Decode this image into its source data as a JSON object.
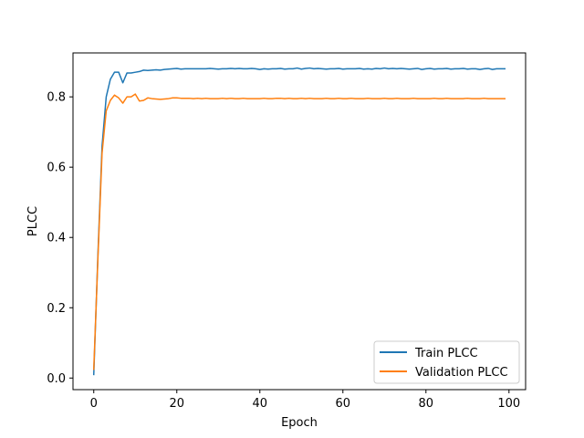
{
  "chart_data": {
    "type": "line",
    "title": "",
    "xlabel": "Epoch",
    "ylabel": "PLCC",
    "xlim": [
      -5,
      104
    ],
    "ylim": [
      -0.033,
      0.925
    ],
    "xticks": [
      0,
      20,
      40,
      60,
      80,
      100
    ],
    "yticks": [
      0.0,
      0.2,
      0.4,
      0.6,
      0.8
    ],
    "xtick_labels": [
      "0",
      "20",
      "40",
      "60",
      "80",
      "100"
    ],
    "ytick_labels": [
      "0.0",
      "0.2",
      "0.4",
      "0.6",
      "0.8"
    ],
    "grid": false,
    "legend_position": "lower-right",
    "series": [
      {
        "name": "Train PLCC",
        "color": "#1f77b4",
        "x": [
          0,
          1,
          2,
          3,
          4,
          5,
          6,
          7,
          8,
          9,
          10,
          11,
          12,
          13,
          14,
          15,
          16,
          17,
          18,
          19,
          20,
          21,
          22,
          23,
          24,
          25,
          26,
          27,
          28,
          29,
          30,
          31,
          32,
          33,
          34,
          35,
          36,
          37,
          38,
          39,
          40,
          41,
          42,
          43,
          44,
          45,
          46,
          47,
          48,
          49,
          50,
          51,
          52,
          53,
          54,
          55,
          56,
          57,
          58,
          59,
          60,
          61,
          62,
          63,
          64,
          65,
          66,
          67,
          68,
          69,
          70,
          71,
          72,
          73,
          74,
          75,
          76,
          77,
          78,
          79,
          80,
          81,
          82,
          83,
          84,
          85,
          86,
          87,
          88,
          89,
          90,
          91,
          92,
          93,
          94,
          95,
          96,
          97,
          98,
          99
        ],
        "values": [
          0.01,
          0.35,
          0.66,
          0.8,
          0.85,
          0.87,
          0.87,
          0.84,
          0.868,
          0.868,
          0.87,
          0.872,
          0.876,
          0.875,
          0.876,
          0.877,
          0.876,
          0.878,
          0.879,
          0.88,
          0.881,
          0.879,
          0.88,
          0.88,
          0.88,
          0.88,
          0.88,
          0.88,
          0.881,
          0.88,
          0.879,
          0.88,
          0.88,
          0.881,
          0.88,
          0.881,
          0.88,
          0.88,
          0.881,
          0.88,
          0.878,
          0.88,
          0.879,
          0.88,
          0.88,
          0.881,
          0.879,
          0.88,
          0.88,
          0.882,
          0.879,
          0.881,
          0.882,
          0.88,
          0.881,
          0.88,
          0.879,
          0.88,
          0.88,
          0.881,
          0.879,
          0.88,
          0.88,
          0.88,
          0.881,
          0.879,
          0.88,
          0.879,
          0.881,
          0.88,
          0.882,
          0.88,
          0.881,
          0.88,
          0.881,
          0.88,
          0.879,
          0.88,
          0.881,
          0.878,
          0.88,
          0.881,
          0.879,
          0.88,
          0.88,
          0.881,
          0.879,
          0.88,
          0.88,
          0.881,
          0.879,
          0.88,
          0.88,
          0.878,
          0.88,
          0.881,
          0.878,
          0.88,
          0.88,
          0.88
        ]
      },
      {
        "name": "Validation PLCC",
        "color": "#ff7f0e",
        "x": [
          0,
          1,
          2,
          3,
          4,
          5,
          6,
          7,
          8,
          9,
          10,
          11,
          12,
          13,
          14,
          15,
          16,
          17,
          18,
          19,
          20,
          21,
          22,
          23,
          24,
          25,
          26,
          27,
          28,
          29,
          30,
          31,
          32,
          33,
          34,
          35,
          36,
          37,
          38,
          39,
          40,
          41,
          42,
          43,
          44,
          45,
          46,
          47,
          48,
          49,
          50,
          51,
          52,
          53,
          54,
          55,
          56,
          57,
          58,
          59,
          60,
          61,
          62,
          63,
          64,
          65,
          66,
          67,
          68,
          69,
          70,
          71,
          72,
          73,
          74,
          75,
          76,
          77,
          78,
          79,
          80,
          81,
          82,
          83,
          84,
          85,
          86,
          87,
          88,
          89,
          90,
          91,
          92,
          93,
          94,
          95,
          96,
          97,
          98,
          99
        ],
        "values": [
          0.025,
          0.34,
          0.64,
          0.76,
          0.79,
          0.805,
          0.797,
          0.782,
          0.8,
          0.8,
          0.808,
          0.788,
          0.79,
          0.797,
          0.795,
          0.794,
          0.793,
          0.794,
          0.795,
          0.797,
          0.797,
          0.796,
          0.796,
          0.796,
          0.795,
          0.796,
          0.795,
          0.796,
          0.795,
          0.795,
          0.795,
          0.796,
          0.795,
          0.796,
          0.795,
          0.795,
          0.796,
          0.795,
          0.795,
          0.795,
          0.795,
          0.796,
          0.795,
          0.795,
          0.796,
          0.796,
          0.795,
          0.796,
          0.795,
          0.795,
          0.796,
          0.795,
          0.796,
          0.795,
          0.795,
          0.795,
          0.796,
          0.795,
          0.795,
          0.796,
          0.795,
          0.795,
          0.796,
          0.795,
          0.795,
          0.795,
          0.796,
          0.795,
          0.795,
          0.795,
          0.796,
          0.795,
          0.795,
          0.796,
          0.795,
          0.795,
          0.795,
          0.796,
          0.795,
          0.795,
          0.795,
          0.795,
          0.796,
          0.795,
          0.795,
          0.796,
          0.795,
          0.795,
          0.795,
          0.795,
          0.796,
          0.795,
          0.795,
          0.795,
          0.796,
          0.795,
          0.795,
          0.795,
          0.795,
          0.795
        ]
      }
    ]
  }
}
